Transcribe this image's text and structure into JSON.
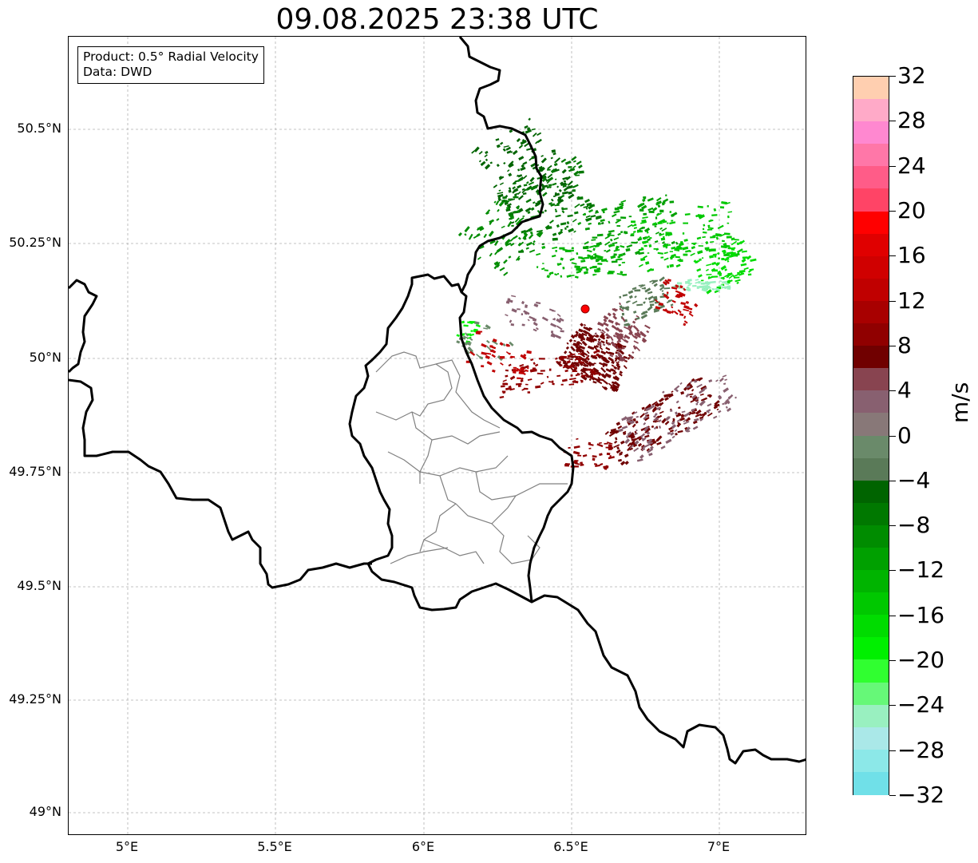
{
  "title": "09.08.2025 23:38 UTC",
  "info": {
    "product": "Product: 0.5° Radial Velocity",
    "data": "Data: DWD"
  },
  "lat_ticks": [
    "50.5°N",
    "50.25°N",
    "50°N",
    "49.75°N",
    "49.5°N",
    "49.25°N",
    "49°N"
  ],
  "lon_ticks": [
    "5°E",
    "5.5°E",
    "6°E",
    "6.5°E",
    "7°E"
  ],
  "colorbar": {
    "units": "m/s",
    "range": [
      -32,
      32
    ],
    "tick_labels": [
      "32",
      "28",
      "24",
      "20",
      "16",
      "12",
      "8",
      "4",
      "0",
      "−4",
      "−8",
      "−12",
      "−16",
      "−20",
      "−24",
      "−28",
      "−32"
    ],
    "colors_top_to_bottom": [
      "#ffcfb0",
      "#ffaac8",
      "#ff88d0",
      "#ff77a8",
      "#ff5c88",
      "#ff4466",
      "#ff0000",
      "#e00000",
      "#d00000",
      "#c00000",
      "#a80000",
      "#900000",
      "#700000",
      "#884450",
      "#886070",
      "#887878",
      "#6a8a6a",
      "#5a7a58",
      "#006400",
      "#007800",
      "#008c00",
      "#00a000",
      "#00b400",
      "#00c800",
      "#00dc00",
      "#00f000",
      "#30ff30",
      "#66f878",
      "#99f0c0",
      "#aae8e8",
      "#8ce8e8",
      "#70e0e8"
    ]
  },
  "radar_site": {
    "lon": 6.55,
    "lat": 50.11,
    "color": "#ff0000"
  },
  "colors": {
    "border": "#000000",
    "admin": "#808080",
    "grid": "#b0b0b0"
  }
}
